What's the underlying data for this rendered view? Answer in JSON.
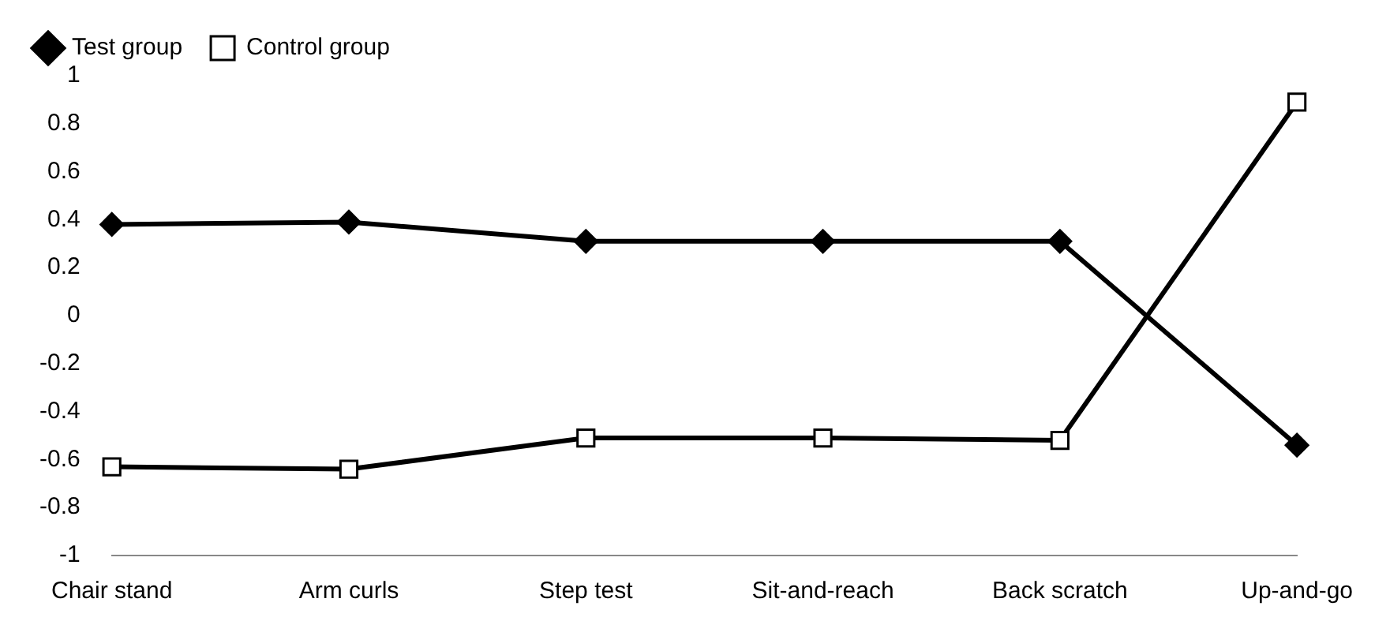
{
  "chart_data": {
    "type": "line",
    "categories": [
      "Chair stand",
      "Arm curls",
      "Step test",
      "Sit-and-reach",
      "Back scratch",
      "Up-and-go"
    ],
    "series": [
      {
        "name": "Test group",
        "color": "#000000",
        "marker": "diamond",
        "values": [
          0.38,
          0.39,
          0.31,
          0.31,
          0.31,
          -0.54
        ]
      },
      {
        "name": "Control group",
        "color": "#000000",
        "marker": "square",
        "values": [
          -0.63,
          -0.64,
          -0.51,
          -0.51,
          -0.52,
          0.89
        ]
      }
    ],
    "ylim": [
      -1,
      1
    ],
    "yticks": [
      -1,
      -0.8,
      -0.6,
      -0.4,
      -0.2,
      0,
      0.2,
      0.4,
      0.6,
      0.8,
      1
    ],
    "grid": false,
    "legend": "top left",
    "line_style": "solid"
  }
}
